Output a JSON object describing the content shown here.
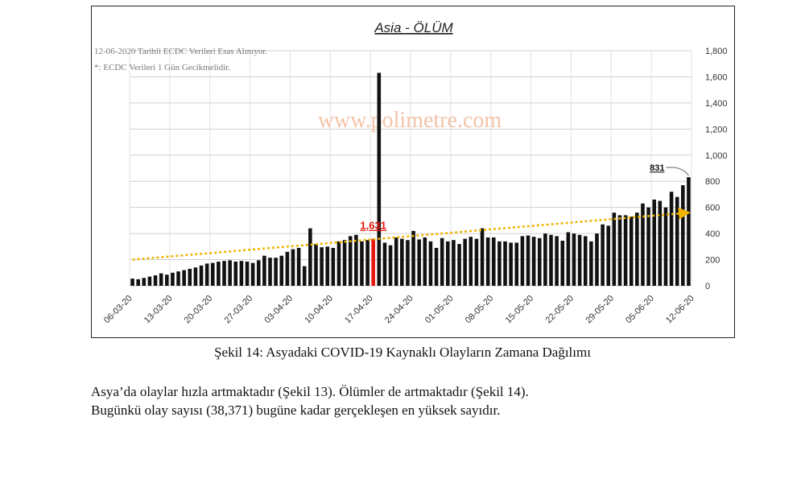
{
  "chart_data": {
    "type": "bar",
    "title": "Asia - ÖLÜM",
    "notes": [
      "12-06-2020 Tarihli ECDC Verileri Esas Alınıyor.",
      "*: ECDC Verileri 1 Gün Gecikmelidir."
    ],
    "watermark": "www.polimetre.com",
    "ylim": [
      0,
      1800
    ],
    "yticks": [
      "0",
      "200",
      "400",
      "600",
      "800",
      "1,000",
      "1,200",
      "1,400",
      "1,600",
      "1,800"
    ],
    "grid": true,
    "xtick_labels": [
      "06-03-20",
      "13-03-20",
      "20-03-20",
      "27-03-20",
      "03-04-20",
      "10-04-20",
      "17-04-20",
      "24-04-20",
      "01-05-20",
      "08-05-20",
      "15-05-20",
      "22-05-20",
      "29-05-20",
      "05-06-20",
      "12-06-20"
    ],
    "x_start": "06-03-20",
    "values": [
      55,
      50,
      60,
      70,
      80,
      95,
      85,
      100,
      110,
      120,
      130,
      140,
      155,
      170,
      175,
      185,
      190,
      195,
      185,
      190,
      185,
      175,
      195,
      230,
      215,
      215,
      230,
      260,
      280,
      290,
      150,
      440,
      320,
      295,
      300,
      290,
      340,
      350,
      380,
      390,
      340,
      350,
      360,
      1631,
      330,
      310,
      370,
      360,
      350,
      420,
      355,
      370,
      340,
      290,
      365,
      340,
      350,
      320,
      360,
      375,
      360,
      440,
      370,
      370,
      340,
      340,
      330,
      330,
      380,
      385,
      375,
      365,
      400,
      390,
      380,
      345,
      410,
      400,
      390,
      380,
      340,
      400,
      470,
      460,
      560,
      540,
      540,
      530,
      560,
      630,
      600,
      660,
      650,
      600,
      720,
      680,
      770,
      831
    ],
    "highlight": {
      "date": "17-04-20",
      "value_label": "1,631",
      "color": "#e8150c"
    },
    "last_label": "831",
    "trend": {
      "start": 200,
      "end": 560,
      "color": "#f0b400"
    },
    "bar_color": "#111111"
  },
  "caption": "Şekil 14: Asyadaki COVID-19 Kaynaklı Olayların Zamana Dağılımı",
  "paragraph": {
    "line1": "Asya’da olaylar hızla artmaktadır (Şekil 13).  Ölümler de artmaktadır (Şekil 14).",
    "line2": "Bugünkü olay sayısı (38,371) bugüne kadar gerçekleşen en yüksek sayıdır."
  }
}
